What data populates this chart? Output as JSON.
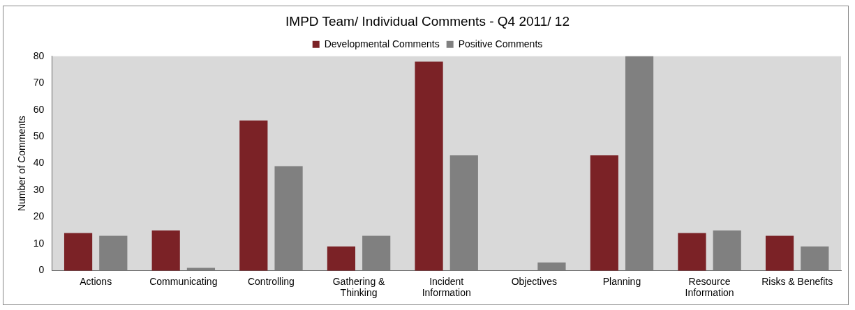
{
  "chart_data": {
    "type": "bar",
    "title": "IMPD Team/ Individual Comments - Q4 2011/ 12",
    "ylabel": "Number of Comments",
    "categories": [
      "Actions",
      "Communicating",
      "Controlling",
      "Gathering & Thinking",
      "Incident Information",
      "Objectives",
      "Planning",
      "Resource Information",
      "Risks & Benefits"
    ],
    "series": [
      {
        "name": "Developmental Comments",
        "color": "#7b2226",
        "values": [
          14,
          15,
          56,
          9,
          78,
          0,
          43,
          14,
          13
        ]
      },
      {
        "name": "Positive Comments",
        "color": "#808080",
        "values": [
          13,
          1,
          39,
          13,
          43,
          3,
          80,
          15,
          9
        ]
      }
    ],
    "ylim": [
      0,
      80
    ],
    "yticks": [
      0,
      10,
      20,
      30,
      40,
      50,
      60,
      70,
      80
    ],
    "grid": false,
    "legend": "top"
  }
}
